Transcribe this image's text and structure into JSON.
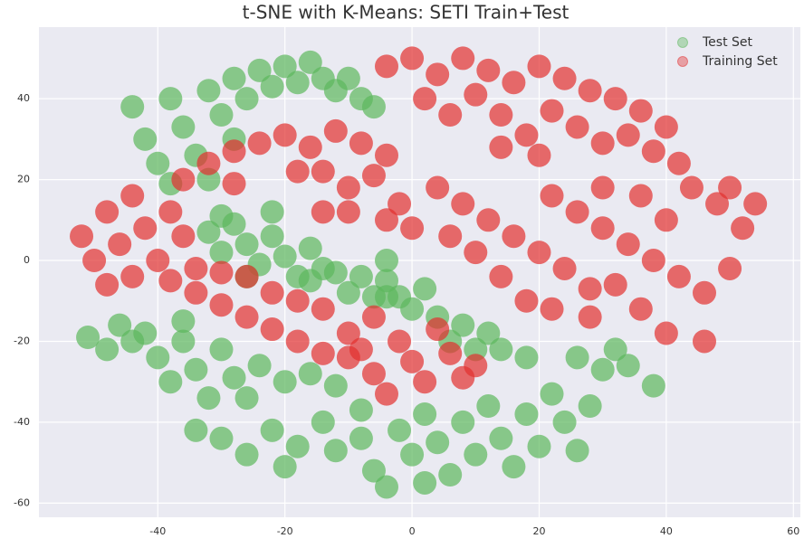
{
  "chart_data": {
    "type": "scatter",
    "title": "t-SNE with K-Means: SETI Train+Test",
    "xlim": [
      -58.7,
      61.1
    ],
    "ylim": [
      -63.5,
      57.7
    ],
    "xticks": [
      -40,
      -20,
      0,
      20,
      40,
      60
    ],
    "yticks": [
      -60,
      -40,
      -20,
      0,
      20,
      40
    ],
    "grid": true,
    "legend": "upper right",
    "series": [
      {
        "name": "Test Set",
        "color": "#5cb85c",
        "x": [
          -44,
          -42,
          -40,
          -38,
          -36,
          -34,
          -32,
          -32,
          -30,
          -28,
          -26,
          -24,
          -22,
          -20,
          -18,
          -16,
          -14,
          -12,
          -10,
          -8,
          -6,
          -38,
          -28,
          -32,
          -30,
          -28,
          -26,
          -24,
          -22,
          -20,
          -18,
          -16,
          -14,
          -26,
          -30,
          -22,
          -16,
          -12,
          -8,
          -6,
          -10,
          -4,
          -4,
          -2,
          -4,
          0,
          4,
          8,
          12,
          14,
          18,
          6,
          10,
          2,
          -42,
          -40,
          -38,
          -36,
          -34,
          -32,
          -30,
          -28,
          -26,
          -24,
          -20,
          -16,
          -12,
          -36,
          -34,
          -30,
          -26,
          -22,
          -20,
          -18,
          -14,
          -12,
          -8,
          -8,
          -6,
          -4,
          -2,
          0,
          2,
          4,
          6,
          8,
          10,
          12,
          14,
          16,
          18,
          20,
          22,
          24,
          26,
          28,
          2,
          -51,
          -48,
          -46,
          -44,
          26,
          30,
          34,
          38,
          32
        ],
        "y": [
          38,
          30,
          24,
          40,
          33,
          26,
          20,
          42,
          36,
          45,
          40,
          47,
          43,
          48,
          44,
          49,
          45,
          42,
          45,
          40,
          38,
          19,
          30,
          7,
          2,
          9,
          4,
          -1,
          6,
          1,
          -4,
          3,
          -2,
          -4,
          11,
          12,
          -5,
          -3,
          -4,
          -9,
          -8,
          0,
          -5,
          -9,
          -9,
          -12,
          -14,
          -16,
          -18,
          -22,
          -24,
          -20,
          -22,
          -7,
          -18,
          -24,
          -30,
          -20,
          -27,
          -34,
          -22,
          -29,
          -34,
          -26,
          -30,
          -28,
          -31,
          -15,
          -42,
          -44,
          -48,
          -42,
          -51,
          -46,
          -40,
          -47,
          -37,
          -44,
          -52,
          -56,
          -42,
          -48,
          -38,
          -45,
          -53,
          -40,
          -48,
          -36,
          -44,
          -51,
          -38,
          -46,
          -33,
          -40,
          -47,
          -36,
          -55,
          -19,
          -22,
          -16,
          -20,
          -24,
          -27,
          -26,
          -31,
          -22
        ]
      },
      {
        "name": "Training Set",
        "color": "#e3302f",
        "x": [
          -4,
          0,
          4,
          8,
          12,
          16,
          20,
          24,
          28,
          32,
          36,
          40,
          2,
          6,
          10,
          14,
          18,
          22,
          26,
          30,
          34,
          38,
          42,
          20,
          14,
          -36,
          -32,
          -28,
          -24,
          -20,
          -16,
          -12,
          -8,
          -4,
          -6,
          -10,
          -14,
          -18,
          -28,
          -2,
          0,
          -4,
          -10,
          -14,
          -52,
          -50,
          -48,
          -48,
          -46,
          -44,
          -42,
          -40,
          -38,
          -36,
          -44,
          -38,
          -34,
          -30,
          -26,
          -22,
          -18,
          -14,
          -10,
          -14,
          -18,
          -22,
          -26,
          -30,
          -6,
          -34,
          -10,
          -8,
          -6,
          -4,
          -2,
          0,
          2,
          4,
          6,
          8,
          10,
          4,
          8,
          12,
          16,
          20,
          24,
          28,
          10,
          14,
          18,
          6,
          22,
          26,
          30,
          34,
          38,
          42,
          46,
          50,
          52,
          48,
          44,
          40,
          36,
          32,
          36,
          40,
          46,
          30,
          50,
          54,
          28,
          22
        ],
        "y": [
          48,
          50,
          46,
          50,
          47,
          44,
          48,
          45,
          42,
          40,
          37,
          33,
          40,
          36,
          41,
          36,
          31,
          37,
          33,
          29,
          31,
          27,
          24,
          26,
          28,
          20,
          24,
          27,
          29,
          31,
          28,
          32,
          29,
          26,
          21,
          18,
          22,
          22,
          19,
          14,
          8,
          10,
          12,
          12,
          6,
          0,
          -6,
          12,
          4,
          16,
          8,
          0,
          12,
          6,
          -4,
          -5,
          -8,
          -11,
          -14,
          -17,
          -20,
          -23,
          -18,
          -12,
          -10,
          -8,
          -4,
          -3,
          -14,
          -2,
          -24,
          -22,
          -28,
          -33,
          -20,
          -25,
          -30,
          -17,
          -23,
          -29,
          -26,
          18,
          14,
          10,
          6,
          2,
          -2,
          -7,
          2,
          -4,
          -10,
          6,
          16,
          12,
          8,
          4,
          0,
          -4,
          -8,
          -2,
          8,
          14,
          18,
          10,
          16,
          -6,
          -12,
          -18,
          -20,
          18,
          18,
          14,
          -14,
          -12
        ]
      }
    ]
  }
}
